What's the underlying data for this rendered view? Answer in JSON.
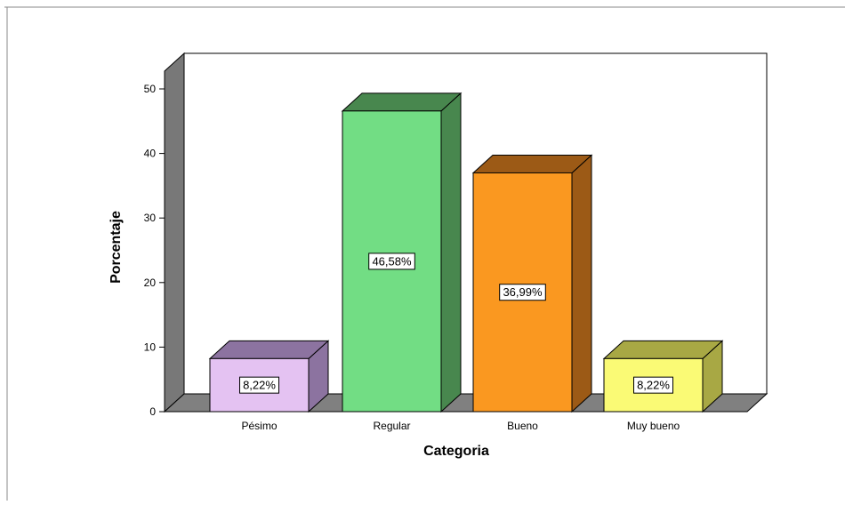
{
  "chart_data": {
    "type": "bar",
    "title": "",
    "xlabel": "Categoria",
    "ylabel": "Porcentaje",
    "categories": [
      "Pésimo",
      "Regular",
      "Bueno",
      "Muy bueno"
    ],
    "values": [
      8.22,
      46.58,
      36.99,
      8.22
    ],
    "data_labels": [
      "8,22%",
      "46,58%",
      "36,99%",
      "8,22%"
    ],
    "yticks": [
      "0",
      "10",
      "20",
      "30",
      "40",
      "50"
    ],
    "ylim": [
      0,
      50
    ],
    "grid": false,
    "legend": "none",
    "style": "3d",
    "colors": {
      "fills": [
        "#e4c2f2",
        "#72dd84",
        "#fa9820",
        "#fafa75"
      ],
      "tops": [
        "#8c73a0",
        "#48874e",
        "#9c5a16",
        "#a8a844"
      ],
      "sides": [
        "#8c73a0",
        "#48874e",
        "#9c5a16",
        "#a8a844"
      ],
      "plot_background": "#ffffff",
      "floor": "#808080",
      "left_wall": "#787878"
    }
  }
}
